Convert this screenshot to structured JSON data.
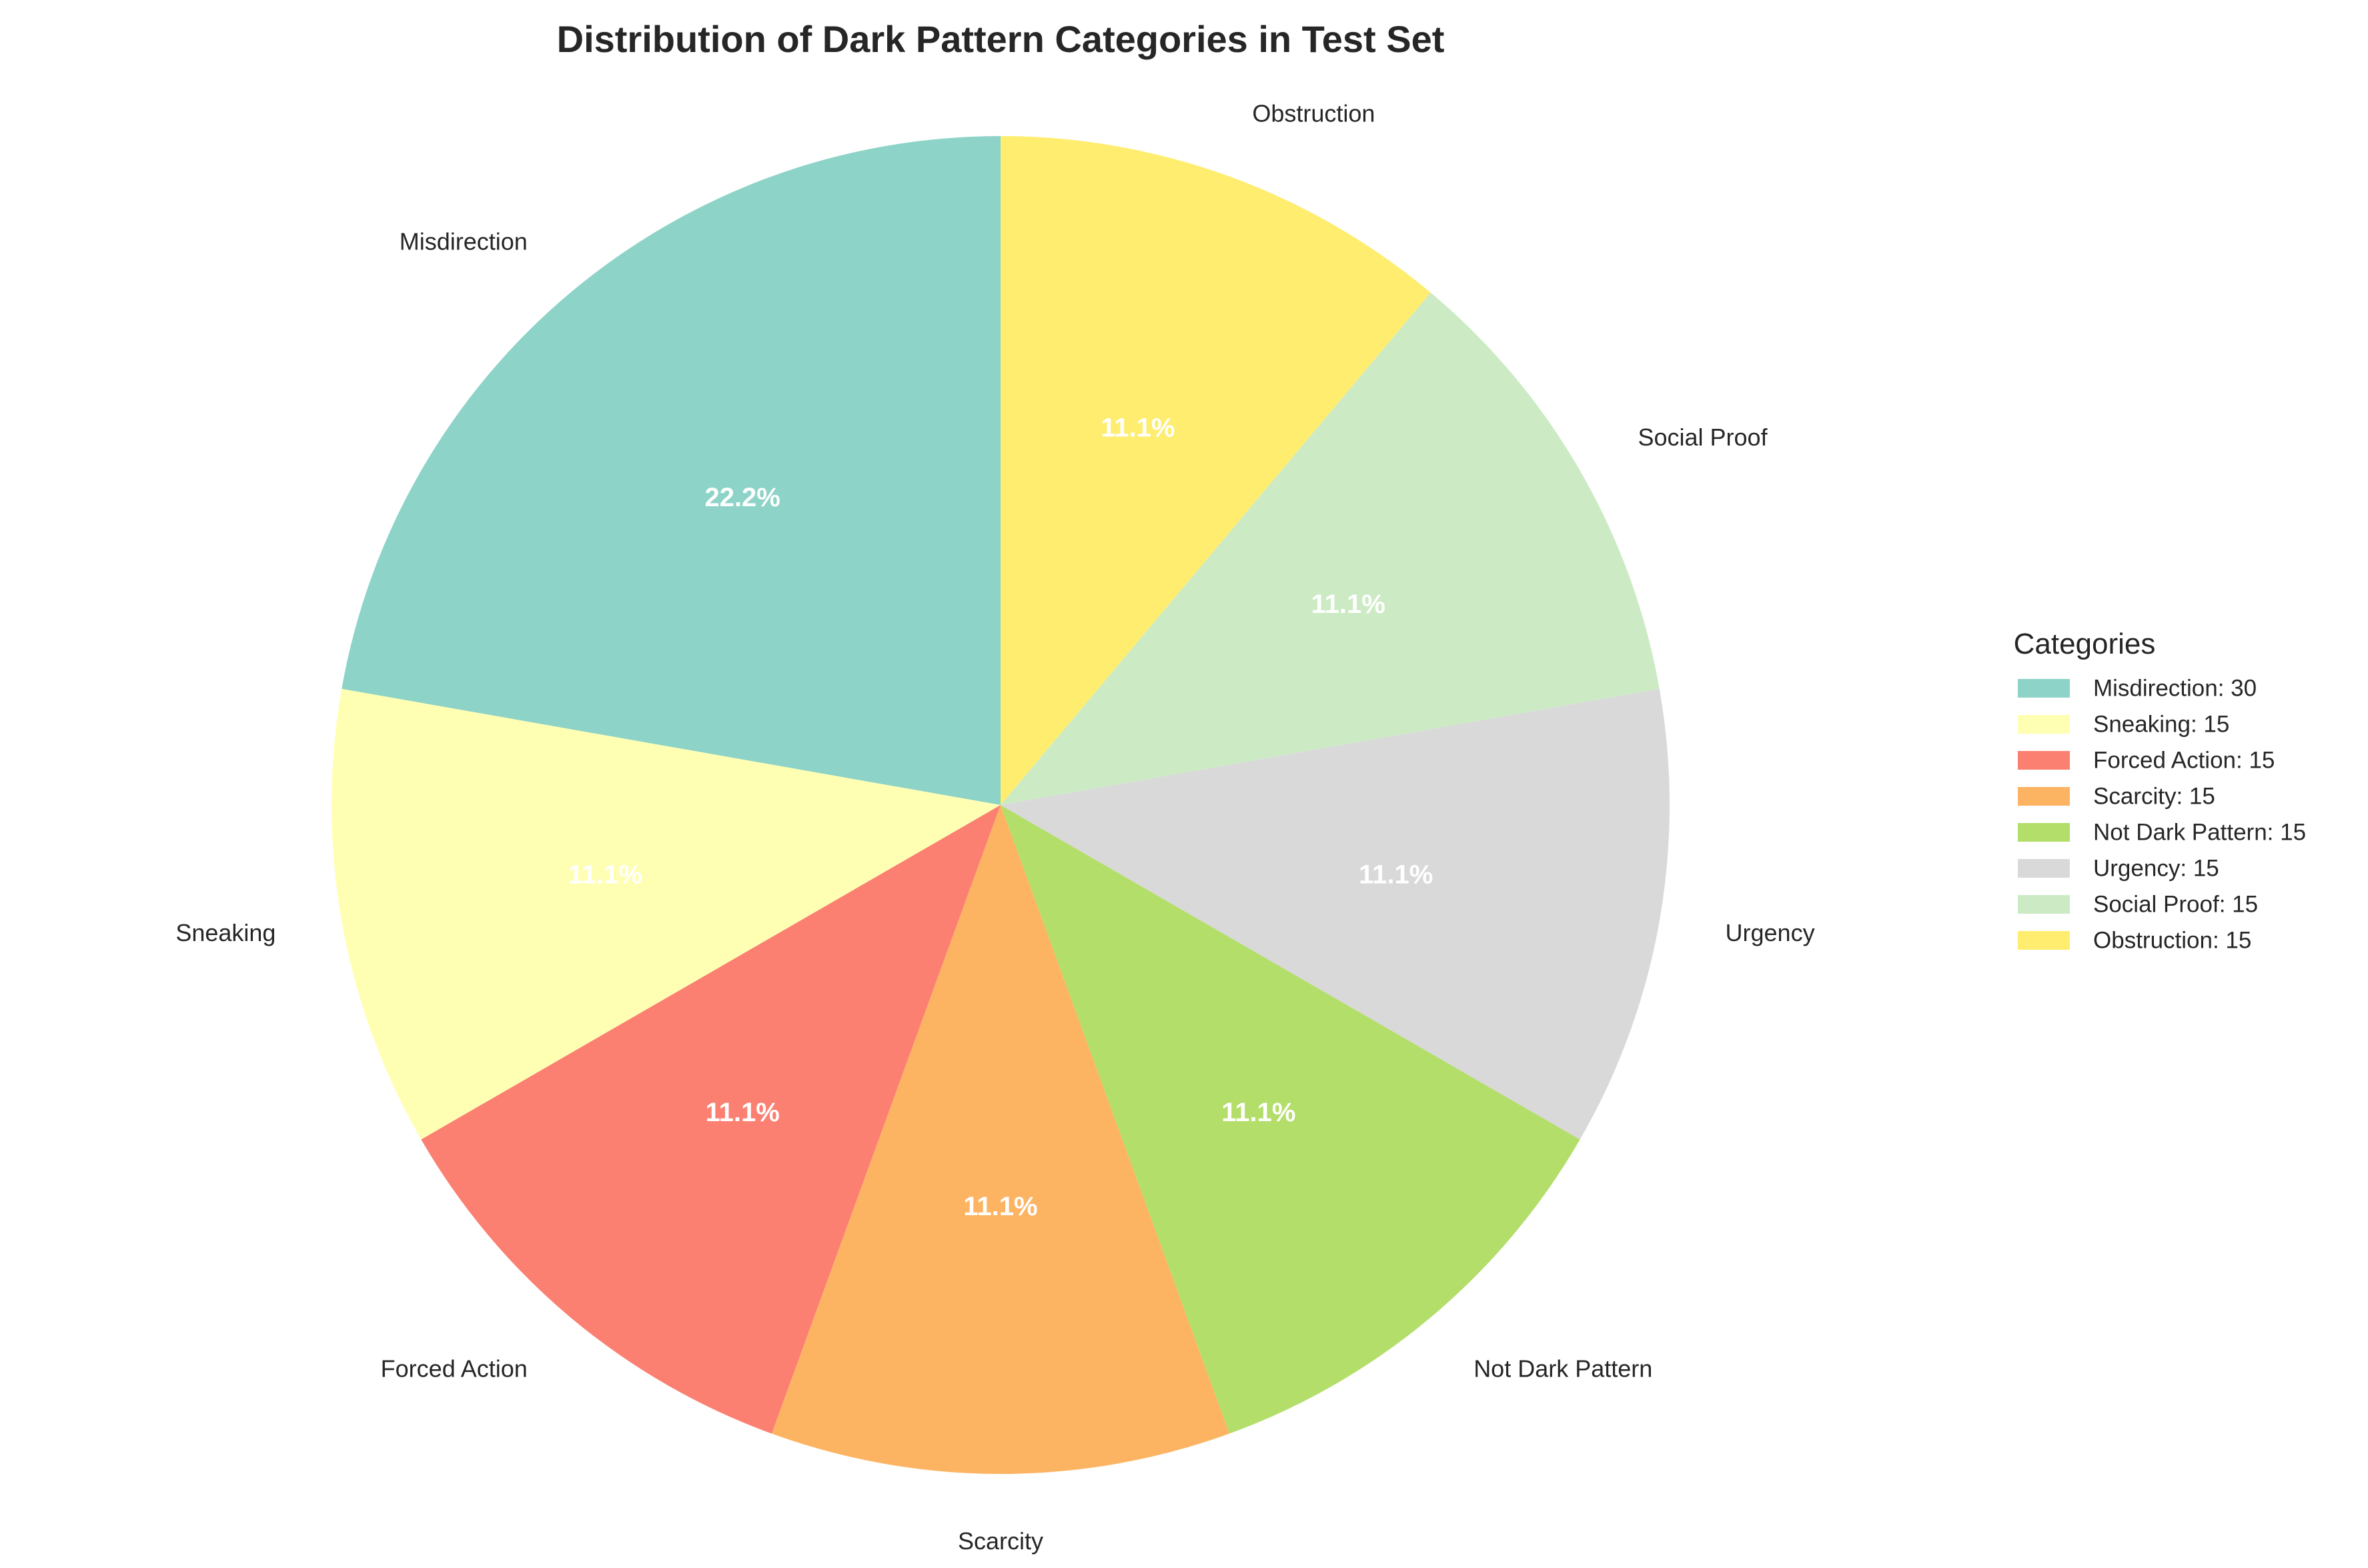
{
  "chart_data": {
    "type": "pie",
    "title": "Distribution of Dark Pattern Categories in Test Set",
    "legend_title": "Categories",
    "legend_placement": "right",
    "start_angle_deg": 90,
    "direction": "counterclockwise",
    "slices": [
      {
        "label": "Misdirection",
        "value": 30,
        "pct_label": "22.2%",
        "legend_label": "Misdirection: 30",
        "color": "#8DD3C7"
      },
      {
        "label": "Sneaking",
        "value": 15,
        "pct_label": "11.1%",
        "legend_label": "Sneaking: 15",
        "color": "#FFFFB3"
      },
      {
        "label": "Forced Action",
        "value": 15,
        "pct_label": "11.1%",
        "legend_label": "Forced Action: 15",
        "color": "#FB8072"
      },
      {
        "label": "Scarcity",
        "value": 15,
        "pct_label": "11.1%",
        "legend_label": "Scarcity: 15",
        "color": "#FDB462"
      },
      {
        "label": "Not Dark Pattern",
        "value": 15,
        "pct_label": "11.1%",
        "legend_label": "Not Dark Pattern: 15",
        "color": "#B3DE69"
      },
      {
        "label": "Urgency",
        "value": 15,
        "pct_label": "11.1%",
        "legend_label": "Urgency: 15",
        "color": "#D9D9D9"
      },
      {
        "label": "Social Proof",
        "value": 15,
        "pct_label": "11.1%",
        "legend_label": "Social Proof: 15",
        "color": "#CCEBC5"
      },
      {
        "label": "Obstruction",
        "value": 15,
        "pct_label": "11.1%",
        "legend_label": "Obstruction: 15",
        "color": "#FFED6F"
      }
    ]
  }
}
